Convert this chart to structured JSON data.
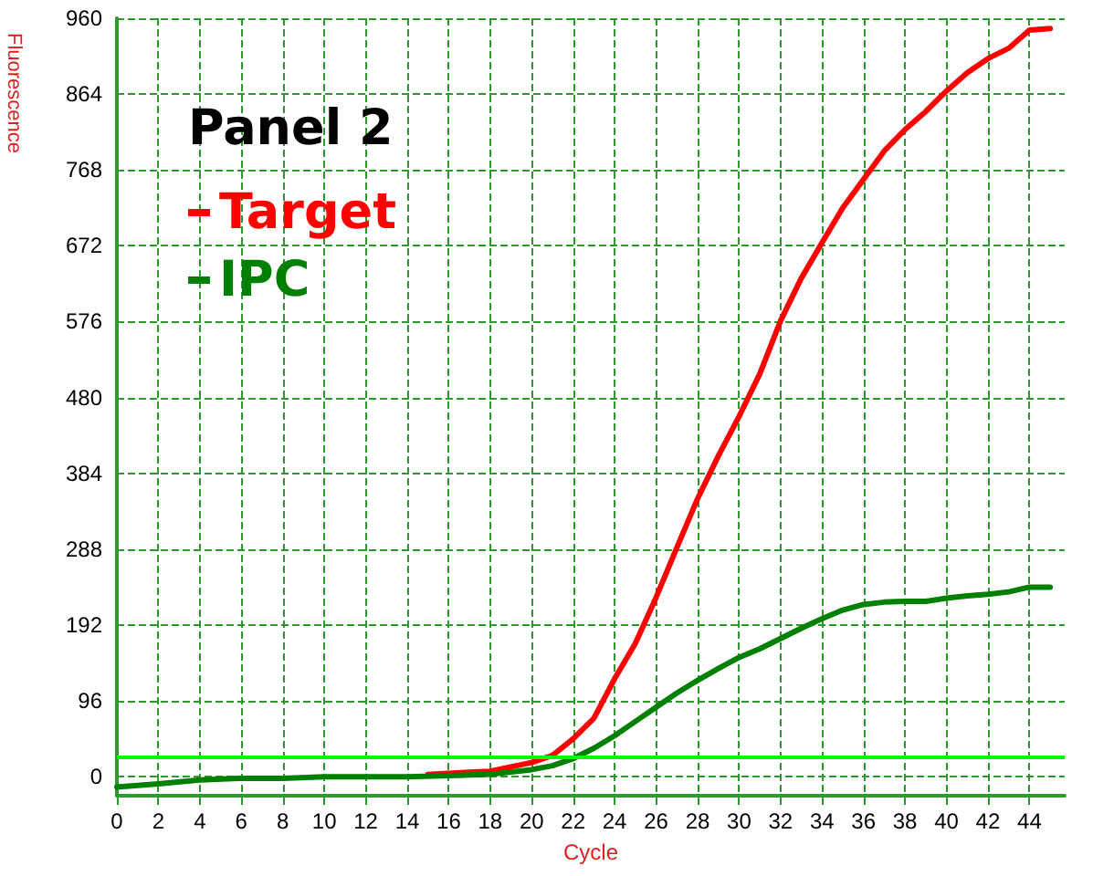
{
  "chart_data": {
    "type": "line",
    "title": "Panel 2",
    "xlabel": "Cycle",
    "ylabel": "Fluorescence",
    "xlim": [
      0,
      45.7
    ],
    "xticks": [
      0,
      2,
      4,
      6,
      8,
      10,
      12,
      14,
      16,
      18,
      20,
      22,
      24,
      26,
      28,
      30,
      32,
      34,
      36,
      38,
      40,
      42,
      44
    ],
    "ylim": [
      -24,
      960
    ],
    "yticks": [
      0,
      96,
      192,
      288,
      384,
      480,
      576,
      672,
      768,
      864,
      960
    ],
    "grid": true,
    "legend": "top left",
    "marker": "none",
    "line_style": "solid",
    "ref_lines": [
      {
        "axis": "y",
        "value": 25,
        "label": null,
        "color": "#00ff00"
      }
    ],
    "series": [
      {
        "name": "Target",
        "color": "#ff0000",
        "x": [
          15,
          18,
          20,
          21,
          22,
          23,
          24,
          25,
          26,
          27,
          28,
          29,
          30,
          31,
          32,
          33,
          34,
          35,
          36,
          37,
          38,
          39,
          40,
          41,
          42,
          43,
          44,
          45
        ],
        "values": [
          3,
          7,
          18,
          27,
          48,
          74,
          124,
          169,
          227,
          290,
          352,
          406,
          456,
          510,
          577,
          631,
          676,
          720,
          756,
          792,
          819,
          842,
          868,
          891,
          909,
          922,
          945,
          947
        ]
      },
      {
        "name": "IPC",
        "color": "#008000",
        "x": [
          0,
          2,
          4,
          6,
          8,
          10,
          14,
          18,
          20,
          21,
          22,
          23,
          24,
          25,
          26,
          27,
          28,
          29,
          30,
          31,
          32,
          33,
          34,
          35,
          36,
          37,
          38,
          39,
          40,
          41,
          42,
          43,
          44,
          45
        ],
        "values": [
          -13,
          -9,
          -4,
          -2,
          -2,
          0,
          0,
          3,
          9,
          14,
          23,
          36,
          52,
          70,
          88,
          106,
          122,
          137,
          151,
          162,
          175,
          188,
          200,
          211,
          218,
          221,
          222,
          222,
          226,
          229,
          231,
          234,
          240,
          240
        ]
      }
    ]
  }
}
